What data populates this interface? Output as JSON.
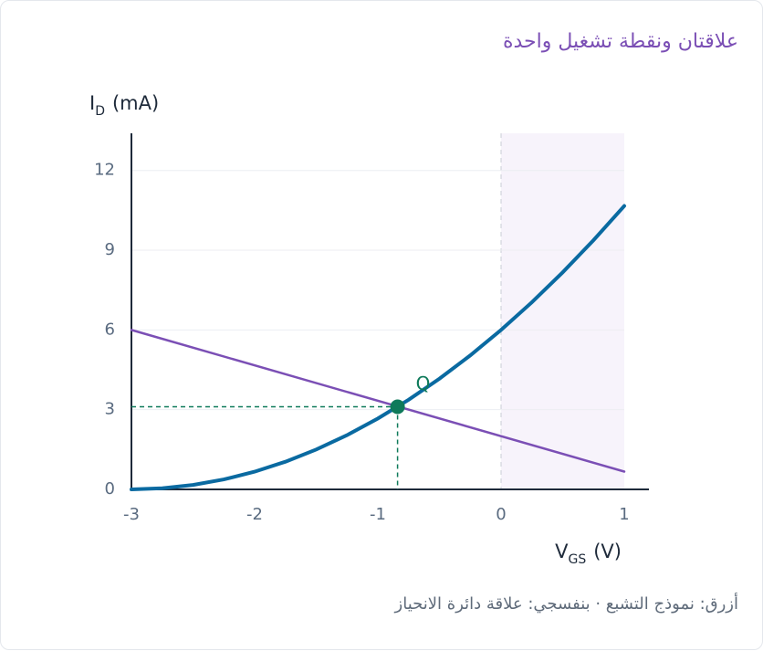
{
  "chart_data": {
    "type": "line",
    "title": "علاقتان ونقطة تشغيل واحدة",
    "caption": "أزرق: نموذج التشبع · بنفسجي: علاقة دائرة الانحياز",
    "y_label": {
      "main": "I",
      "sub": "D",
      "unit": "(mA)"
    },
    "x_label": {
      "main": "V",
      "sub": "GS",
      "unit": "(V)"
    },
    "xlim": [
      -3,
      1.2
    ],
    "ylim": [
      0,
      13.4
    ],
    "xticks": [
      -3,
      -2,
      -1,
      0,
      1
    ],
    "yticks": [
      0,
      3,
      6,
      9,
      12
    ],
    "grid": true,
    "highlight_region": {
      "x": [
        0,
        1
      ],
      "color": "#f7f3fb"
    },
    "series": [
      {
        "color": "#0a6aa1",
        "x": [
          -3,
          -2.75,
          -2.5,
          -2.25,
          -2,
          -1.75,
          -1.5,
          -1.25,
          -1,
          -0.75,
          -0.5,
          -0.25,
          0,
          0.25,
          0.5,
          0.75,
          1
        ],
        "values": [
          0,
          0.0417,
          0.1667,
          0.375,
          0.6667,
          1.0417,
          1.5,
          2.0417,
          2.6667,
          3.375,
          4.1667,
          5.0417,
          6,
          7.0417,
          8.1667,
          9.375,
          10.6667
        ]
      },
      {
        "color": "#7b4fb5",
        "x": [
          -3,
          1
        ],
        "values": [
          6,
          0.67
        ]
      }
    ],
    "point": {
      "label": "Q",
      "x": -0.84,
      "y": 3.11,
      "color": "#0e7a5a"
    }
  }
}
